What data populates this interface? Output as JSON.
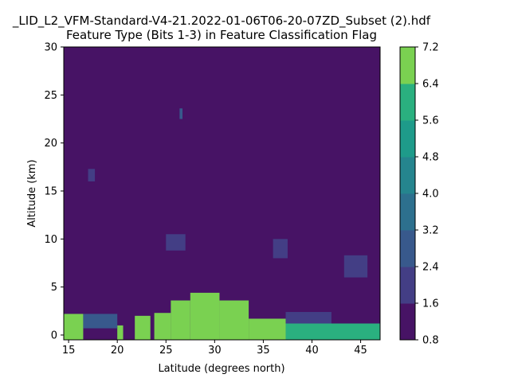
{
  "chart_data": {
    "type": "heatmap",
    "title_line1": "_LID_L2_VFM-Standard-V4-21.2022-01-06T06-20-07ZD_Subset (2).hdf",
    "title_line2": "Feature Type (Bits 1-3) in Feature Classification Flag",
    "xlabel": "Latitude (degrees north)",
    "ylabel": "Altitude (km)",
    "xlim": [
      14.5,
      47.0
    ],
    "ylim": [
      -0.5,
      30
    ],
    "x_ticks": [
      "15",
      "20",
      "25",
      "30",
      "35",
      "40",
      "45"
    ],
    "y_ticks": [
      "0",
      "5",
      "10",
      "15",
      "20",
      "25",
      "30"
    ],
    "colorbar": {
      "levels": [
        0.8,
        1.6,
        2.4,
        3.2,
        4.0,
        4.8,
        5.6,
        6.4,
        7.2
      ],
      "tick_labels": [
        "0.8",
        "1.6",
        "2.4",
        "3.2",
        "4.0",
        "4.8",
        "5.6",
        "6.4",
        "7.2"
      ],
      "colors": [
        "#471365",
        "#433e85",
        "#38598c",
        "#2d708e",
        "#25858e",
        "#1e9b8a",
        "#2ab07f",
        "#7ad151",
        "#d8e219"
      ]
    },
    "background_value": 1.0,
    "features": [
      {
        "value": 7.0,
        "x": [
          14.5,
          16.5
        ],
        "y": [
          -0.5,
          2.2
        ]
      },
      {
        "value": 7.0,
        "x": [
          20.0,
          20.6
        ],
        "y": [
          -0.5,
          1.0
        ]
      },
      {
        "value": 7.0,
        "x": [
          21.8,
          23.4
        ],
        "y": [
          -0.5,
          2.0
        ]
      },
      {
        "value": 7.0,
        "x": [
          23.8,
          25.5
        ],
        "y": [
          -0.5,
          2.3
        ]
      },
      {
        "value": 7.0,
        "x": [
          25.5,
          27.5
        ],
        "y": [
          -0.5,
          3.6
        ]
      },
      {
        "value": 7.0,
        "x": [
          27.5,
          30.5
        ],
        "y": [
          -0.5,
          4.4
        ]
      },
      {
        "value": 7.0,
        "x": [
          30.5,
          33.5
        ],
        "y": [
          -0.5,
          3.6
        ]
      },
      {
        "value": 7.0,
        "x": [
          33.5,
          37.3
        ],
        "y": [
          -0.5,
          1.7
        ]
      },
      {
        "value": 6.0,
        "x": [
          37.3,
          47.0
        ],
        "y": [
          -0.5,
          1.2
        ]
      },
      {
        "value": 3.0,
        "x": [
          16.5,
          20.0
        ],
        "y": [
          0.7,
          2.2
        ]
      },
      {
        "value": 2.0,
        "x": [
          37.3,
          42.0
        ],
        "y": [
          1.2,
          2.4
        ]
      },
      {
        "value": 3.0,
        "x": [
          26.4,
          26.7
        ],
        "y": [
          22.5,
          23.6
        ]
      },
      {
        "value": 2.0,
        "x": [
          17.0,
          17.7
        ],
        "y": [
          16.0,
          17.3
        ]
      },
      {
        "value": 2.0,
        "x": [
          25.0,
          27.0
        ],
        "y": [
          8.8,
          10.5
        ]
      },
      {
        "value": 2.0,
        "x": [
          36.0,
          37.5
        ],
        "y": [
          8.0,
          10.0
        ]
      },
      {
        "value": 2.0,
        "x": [
          43.3,
          45.7
        ],
        "y": [
          6.0,
          8.3
        ]
      }
    ]
  }
}
